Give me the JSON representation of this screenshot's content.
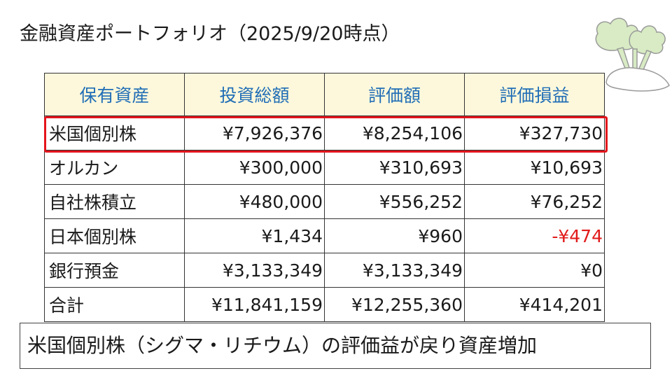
{
  "title": "金融資産ポートフォリオ（2025/9/20時点）",
  "table": {
    "headers": [
      "保有資産",
      "投資総額",
      "評価額",
      "評価損益"
    ],
    "rows": [
      {
        "name": "米国個別株",
        "invested": "¥7,926,376",
        "valuation": "¥8,254,106",
        "pnl": "¥327,730"
      },
      {
        "name": "オルカン",
        "invested": "¥300,000",
        "valuation": "¥310,693",
        "pnl": "¥10,693"
      },
      {
        "name": "自社株積立",
        "invested": "¥480,000",
        "valuation": "¥556,252",
        "pnl": "¥76,252"
      },
      {
        "name": "日本個別株",
        "invested": "¥1,434",
        "valuation": "¥960",
        "pnl": "-¥474"
      },
      {
        "name": "銀行預金",
        "invested": "¥3,133,349",
        "valuation": "¥3,133,349",
        "pnl": "¥0"
      },
      {
        "name": "合計",
        "invested": "¥11,841,159",
        "valuation": "¥12,255,360",
        "pnl": "¥414,201"
      }
    ]
  },
  "summary": "米国個別株（シグマ・リチウム）の評価益が戻り資産増加",
  "colors": {
    "header_text": "#1f6db6",
    "header_bg": "#fdf8dc",
    "highlight_border": "#e3141b",
    "negative_text": "#e11a1a"
  },
  "icons": {
    "illustration": "turnip-icon"
  }
}
